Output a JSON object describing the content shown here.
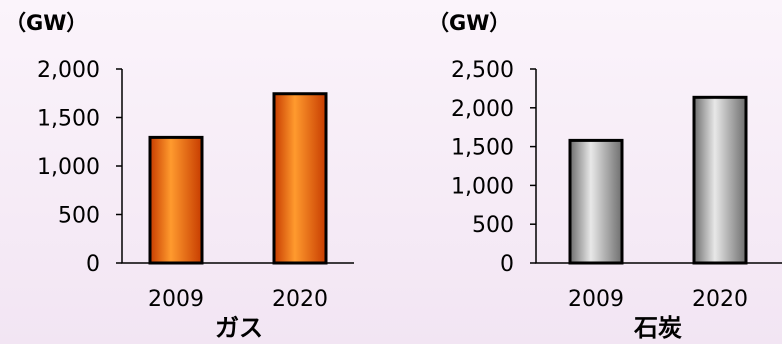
{
  "colors": {
    "gas_bar_light": "#ff9a2e",
    "gas_bar_dark": "#c73c00",
    "coal_bar_light": "#e8e8e8",
    "coal_bar_dark": "#6e6e6e",
    "background": "#f5eaf5"
  },
  "chart_data": [
    {
      "type": "bar",
      "title": "ガス",
      "unit": "（GW）",
      "categories": [
        "2009",
        "2020"
      ],
      "values": [
        1295,
        1745
      ],
      "ylim": [
        0,
        2000
      ],
      "yticks": [
        0,
        500,
        1000,
        1500,
        2000
      ],
      "ytick_labels": [
        "0",
        "500",
        "1,000",
        "1,500",
        "2,000"
      ],
      "grid": false,
      "legend": "none"
    },
    {
      "type": "bar",
      "title": "石炭",
      "unit": "（GW）",
      "categories": [
        "2009",
        "2020"
      ],
      "values": [
        1580,
        2135
      ],
      "ylim": [
        0,
        2500
      ],
      "yticks": [
        0,
        500,
        1000,
        1500,
        2000,
        2500
      ],
      "ytick_labels": [
        "0",
        "500",
        "1,000",
        "1,500",
        "2,000",
        "2,500"
      ],
      "grid": false,
      "legend": "none"
    }
  ]
}
